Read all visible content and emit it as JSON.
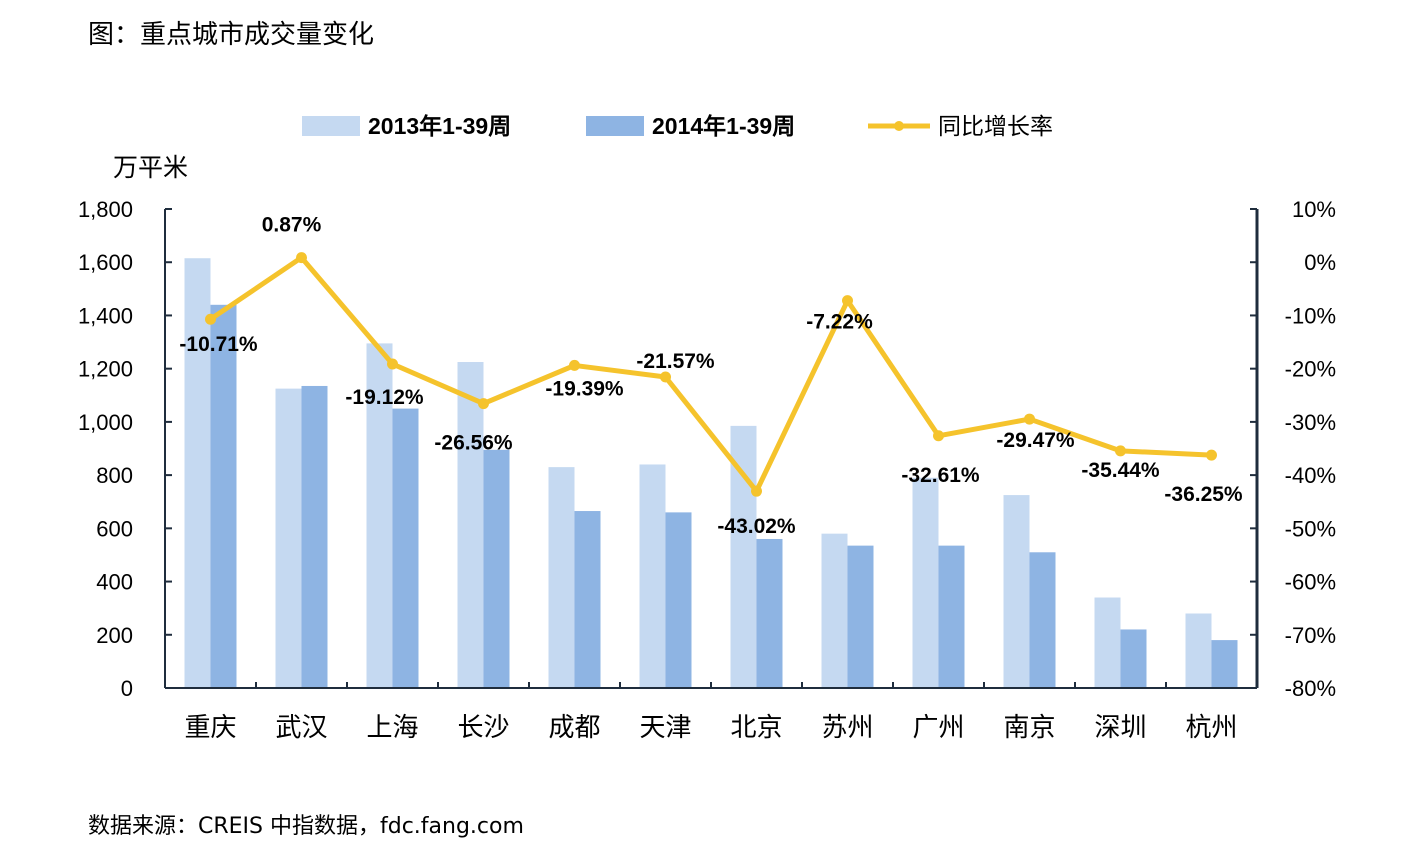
{
  "title": "图：重点城市成交量变化",
  "source": "数据来源：CREIS 中指数据，fdc.fang.com",
  "colors": {
    "series_2013": "#c5d9f1",
    "series_2014": "#8eb4e3",
    "line": "#f5c32c",
    "axis": "#1f2d3d"
  },
  "chart_data": {
    "type": "bar",
    "categories": [
      "重庆",
      "武汉",
      "上海",
      "长沙",
      "成都",
      "天津",
      "北京",
      "苏州",
      "广州",
      "南京",
      "深圳",
      "杭州"
    ],
    "series": [
      {
        "name": "2013年1-39周",
        "axis": "left",
        "values": [
          1615,
          1125,
          1295,
          1225,
          830,
          840,
          985,
          580,
          790,
          725,
          340,
          280
        ]
      },
      {
        "name": "2014年1-39周",
        "axis": "left",
        "values": [
          1440,
          1135,
          1050,
          895,
          665,
          660,
          560,
          535,
          535,
          510,
          220,
          180
        ]
      },
      {
        "name": "同比增长率",
        "type": "line",
        "axis": "right",
        "values": [
          -10.71,
          0.87,
          -19.12,
          -26.56,
          -19.39,
          -21.57,
          -43.02,
          -7.22,
          -32.61,
          -29.47,
          -35.44,
          -36.25
        ]
      }
    ],
    "line_labels": [
      "-10.71%",
      "0.87%",
      "-19.12%",
      "-26.56%",
      "-19.39%",
      "-21.57%",
      "-43.02%",
      "-7.22%",
      "-32.61%",
      "-29.47%",
      "-35.44%",
      "-36.25%"
    ],
    "ylabel": "万平米",
    "ylim": [
      0,
      1800
    ],
    "y_ticks": [
      "0",
      "200",
      "400",
      "600",
      "800",
      "1,000",
      "1,200",
      "1,400",
      "1,600",
      "1,800"
    ],
    "y2lim": [
      -80,
      10
    ],
    "y2_ticks": [
      "-80%",
      "-70%",
      "-60%",
      "-50%",
      "-40%",
      "-30%",
      "-20%",
      "-10%",
      "0%",
      "10%"
    ],
    "legend_position": "top-center",
    "grid": false
  }
}
